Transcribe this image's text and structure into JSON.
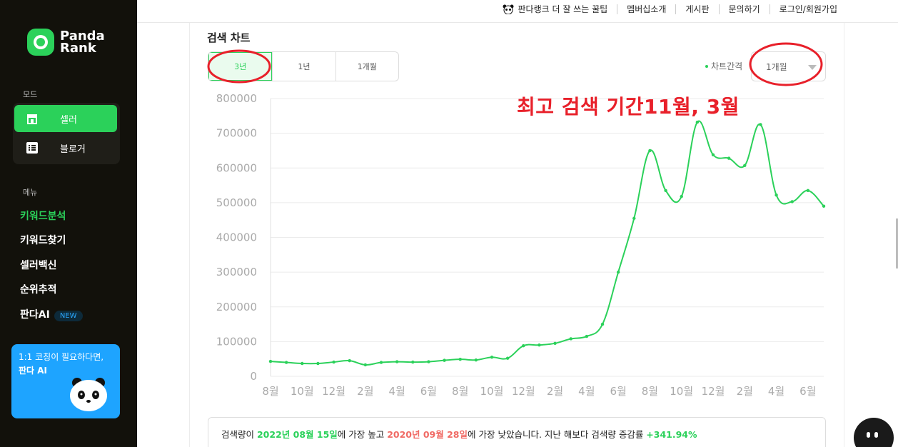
{
  "sidebar": {
    "logo_line1": "Panda",
    "logo_line2": "Rank",
    "mode_label": "모드",
    "modes": [
      {
        "label": "셀러",
        "icon": "store-icon",
        "active": true
      },
      {
        "label": "블로거",
        "icon": "list-icon",
        "active": false
      }
    ],
    "menu_label": "메뉴",
    "menu": [
      {
        "label": "키워드분석",
        "active": true
      },
      {
        "label": "키워드찾기",
        "active": false
      },
      {
        "label": "셀러백신",
        "active": false
      },
      {
        "label": "순위추적",
        "active": false
      },
      {
        "label": "판다AI",
        "active": false,
        "badge": "NEW"
      }
    ],
    "coach_line1": "1:1 코칭이 필요하다면,",
    "coach_line2": "판다 AI"
  },
  "topnav": {
    "links": [
      "판다랭크 더 잘 쓰는 꿀팁",
      "멤버십소개",
      "게시판",
      "문의하기",
      "로그인/회원가입"
    ]
  },
  "search_chart": {
    "title": "검색 차트",
    "range_tabs": [
      "3년",
      "1년",
      "1개월"
    ],
    "interval_label": "차트간격",
    "interval_value": "1개월",
    "annotation": "최고 검색 기간11월, 3월"
  },
  "summary": {
    "prefix": "검색량이 ",
    "high_date": "2022년 08월 15일",
    "mid1": "에 가장 높고 ",
    "low_date": "2020년 09월 28일",
    "mid2": "에 가장 낮았습니다. 지난 해보다 검색량 증감률 ",
    "rate": "+341.94%"
  },
  "colors": {
    "brand_green": "#2bd15a",
    "annotation_red": "#e8202a",
    "low_red": "#f06a64"
  },
  "chart_data": {
    "type": "line",
    "ylim": [
      0,
      800000
    ],
    "y_ticks": [
      0,
      100000,
      200000,
      300000,
      400000,
      500000,
      600000,
      700000,
      800000
    ],
    "x_tick_labels": [
      "8월",
      "10월",
      "12월",
      "2월",
      "4월",
      "6월",
      "8월",
      "10월",
      "12월",
      "2월",
      "4월",
      "6월",
      "8월",
      "10월",
      "12월",
      "2월",
      "4월",
      "6월"
    ],
    "x_tick_index": [
      0,
      2,
      4,
      6,
      8,
      10,
      12,
      14,
      16,
      18,
      20,
      22,
      24,
      26,
      28,
      30,
      32,
      34
    ],
    "series": [
      {
        "values": [
          43000,
          40000,
          37000,
          37000,
          41000,
          45000,
          33000,
          40000,
          42000,
          41000,
          42000,
          46000,
          49000,
          47000,
          55000,
          52000,
          88000,
          90000,
          95000,
          108000,
          115000,
          150000,
          300000,
          455000,
          650000,
          535000,
          518000,
          732000,
          638000,
          628000,
          607000,
          725000,
          522000,
          503000,
          535000,
          490000
        ]
      }
    ]
  }
}
